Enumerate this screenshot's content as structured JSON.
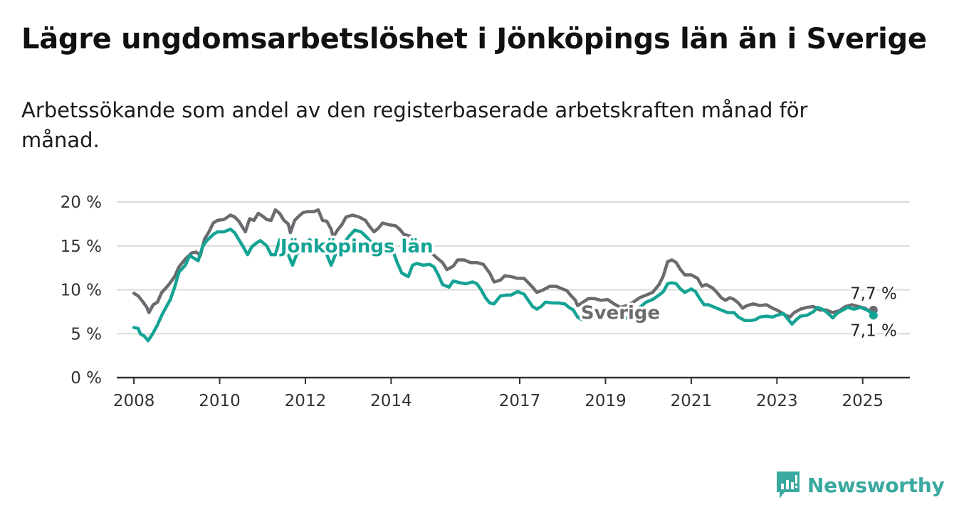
{
  "title": "Lägre ungdomsarbetslöshet i Jönköpings län än i Sverige",
  "subtitle": "Arbetssökande som andel av den registerbaserade arbetskraften månad för månad.",
  "brand": "Newsworthy",
  "chart_data": {
    "type": "line",
    "ylim": [
      0,
      20
    ],
    "xlim": [
      2007.6,
      2026.1
    ],
    "yticks": [
      0,
      5,
      10,
      15,
      20
    ],
    "ytick_labels": [
      "0 %",
      "5 %",
      "10 %",
      "15 %",
      "20 %"
    ],
    "xticks": [
      2008,
      2010,
      2012,
      2014,
      2017,
      2019,
      2021,
      2023,
      2025
    ],
    "xtick_labels": [
      "2008",
      "2010",
      "2012",
      "2014",
      "2017",
      "2019",
      "2021",
      "2023",
      "2025"
    ],
    "grid": true,
    "series": [
      {
        "name": "Sverige",
        "color": "#6b6a6e",
        "end_label": "7,7 %",
        "points": [
          [
            2008.0,
            9.6
          ],
          [
            2008.1,
            9.3
          ],
          [
            2008.2,
            8.7
          ],
          [
            2008.3,
            8.0
          ],
          [
            2008.35,
            7.4
          ],
          [
            2008.45,
            8.3
          ],
          [
            2008.55,
            8.6
          ],
          [
            2008.65,
            9.7
          ],
          [
            2008.8,
            10.5
          ],
          [
            2008.95,
            11.5
          ],
          [
            2009.05,
            12.6
          ],
          [
            2009.2,
            13.5
          ],
          [
            2009.35,
            14.2
          ],
          [
            2009.45,
            14.3
          ],
          [
            2009.55,
            13.9
          ],
          [
            2009.65,
            15.8
          ],
          [
            2009.75,
            16.6
          ],
          [
            2009.85,
            17.6
          ],
          [
            2009.95,
            17.9
          ],
          [
            2010.1,
            18.0
          ],
          [
            2010.25,
            18.5
          ],
          [
            2010.35,
            18.3
          ],
          [
            2010.45,
            17.8
          ],
          [
            2010.55,
            17.0
          ],
          [
            2010.6,
            16.6
          ],
          [
            2010.7,
            18.1
          ],
          [
            2010.8,
            17.9
          ],
          [
            2010.9,
            18.7
          ],
          [
            2011.0,
            18.4
          ],
          [
            2011.1,
            18.0
          ],
          [
            2011.2,
            17.9
          ],
          [
            2011.3,
            19.1
          ],
          [
            2011.4,
            18.7
          ],
          [
            2011.5,
            17.9
          ],
          [
            2011.6,
            17.5
          ],
          [
            2011.65,
            16.5
          ],
          [
            2011.75,
            17.9
          ],
          [
            2011.85,
            18.4
          ],
          [
            2011.95,
            18.8
          ],
          [
            2012.05,
            18.9
          ],
          [
            2012.2,
            18.9
          ],
          [
            2012.3,
            19.1
          ],
          [
            2012.4,
            17.9
          ],
          [
            2012.5,
            17.8
          ],
          [
            2012.6,
            16.9
          ],
          [
            2012.65,
            16.0
          ],
          [
            2012.75,
            16.8
          ],
          [
            2012.85,
            17.4
          ],
          [
            2012.95,
            18.3
          ],
          [
            2013.1,
            18.5
          ],
          [
            2013.25,
            18.3
          ],
          [
            2013.4,
            17.9
          ],
          [
            2013.5,
            17.2
          ],
          [
            2013.6,
            16.6
          ],
          [
            2013.7,
            17.0
          ],
          [
            2013.8,
            17.6
          ],
          [
            2013.95,
            17.4
          ],
          [
            2014.1,
            17.3
          ],
          [
            2014.2,
            16.9
          ],
          [
            2014.3,
            16.3
          ],
          [
            2014.45,
            16.1
          ],
          [
            2014.6,
            15.6
          ],
          [
            2014.75,
            15.1
          ],
          [
            2014.9,
            14.4
          ],
          [
            2015.05,
            13.7
          ],
          [
            2015.2,
            13.1
          ],
          [
            2015.3,
            12.3
          ],
          [
            2015.45,
            12.7
          ],
          [
            2015.55,
            13.4
          ],
          [
            2015.7,
            13.4
          ],
          [
            2015.85,
            13.1
          ],
          [
            2016.0,
            13.1
          ],
          [
            2016.15,
            12.9
          ],
          [
            2016.3,
            11.9
          ],
          [
            2016.4,
            10.9
          ],
          [
            2016.55,
            11.1
          ],
          [
            2016.65,
            11.6
          ],
          [
            2016.8,
            11.5
          ],
          [
            2016.95,
            11.3
          ],
          [
            2017.1,
            11.3
          ],
          [
            2017.2,
            10.8
          ],
          [
            2017.3,
            10.3
          ],
          [
            2017.4,
            9.7
          ],
          [
            2017.55,
            10.0
          ],
          [
            2017.7,
            10.4
          ],
          [
            2017.85,
            10.4
          ],
          [
            2018.0,
            10.1
          ],
          [
            2018.1,
            9.9
          ],
          [
            2018.2,
            9.3
          ],
          [
            2018.3,
            8.8
          ],
          [
            2018.35,
            8.2
          ],
          [
            2018.45,
            8.5
          ],
          [
            2018.6,
            9.0
          ],
          [
            2018.75,
            9.0
          ],
          [
            2018.9,
            8.8
          ],
          [
            2019.05,
            8.9
          ],
          [
            2019.2,
            8.4
          ],
          [
            2019.35,
            8.0
          ],
          [
            2019.5,
            8.2
          ],
          [
            2019.65,
            8.6
          ],
          [
            2019.8,
            9.1
          ],
          [
            2019.95,
            9.4
          ],
          [
            2020.1,
            9.7
          ],
          [
            2020.25,
            10.6
          ],
          [
            2020.35,
            11.6
          ],
          [
            2020.45,
            13.2
          ],
          [
            2020.55,
            13.4
          ],
          [
            2020.65,
            13.1
          ],
          [
            2020.75,
            12.3
          ],
          [
            2020.85,
            11.7
          ],
          [
            2021.0,
            11.7
          ],
          [
            2021.15,
            11.3
          ],
          [
            2021.25,
            10.4
          ],
          [
            2021.35,
            10.6
          ],
          [
            2021.5,
            10.2
          ],
          [
            2021.6,
            9.7
          ],
          [
            2021.7,
            9.1
          ],
          [
            2021.8,
            8.8
          ],
          [
            2021.9,
            9.1
          ],
          [
            2022.0,
            8.9
          ],
          [
            2022.1,
            8.5
          ],
          [
            2022.2,
            7.9
          ],
          [
            2022.3,
            8.2
          ],
          [
            2022.45,
            8.4
          ],
          [
            2022.6,
            8.2
          ],
          [
            2022.75,
            8.3
          ],
          [
            2022.9,
            7.9
          ],
          [
            2023.0,
            7.7
          ],
          [
            2023.1,
            7.4
          ],
          [
            2023.2,
            7.1
          ],
          [
            2023.3,
            6.9
          ],
          [
            2023.4,
            7.4
          ],
          [
            2023.55,
            7.8
          ],
          [
            2023.7,
            8.0
          ],
          [
            2023.85,
            8.1
          ],
          [
            2024.0,
            7.7
          ],
          [
            2024.15,
            7.7
          ],
          [
            2024.3,
            7.4
          ],
          [
            2024.45,
            7.6
          ],
          [
            2024.6,
            8.1
          ],
          [
            2024.75,
            8.3
          ],
          [
            2024.9,
            8.1
          ],
          [
            2025.05,
            7.9
          ],
          [
            2025.15,
            7.6
          ],
          [
            2025.25,
            7.7
          ]
        ]
      },
      {
        "name": "Jönköpings län",
        "color": "#14a394",
        "end_label": "7,1 %",
        "points": [
          [
            2008.0,
            5.7
          ],
          [
            2008.1,
            5.6
          ],
          [
            2008.15,
            5.0
          ],
          [
            2008.25,
            4.7
          ],
          [
            2008.33,
            4.2
          ],
          [
            2008.45,
            5.1
          ],
          [
            2008.55,
            6.0
          ],
          [
            2008.65,
            7.1
          ],
          [
            2008.75,
            8.0
          ],
          [
            2008.85,
            8.9
          ],
          [
            2008.95,
            10.3
          ],
          [
            2009.05,
            12.0
          ],
          [
            2009.2,
            12.8
          ],
          [
            2009.3,
            13.9
          ],
          [
            2009.4,
            13.6
          ],
          [
            2009.5,
            13.3
          ],
          [
            2009.6,
            14.9
          ],
          [
            2009.7,
            15.6
          ],
          [
            2009.85,
            16.3
          ],
          [
            2009.95,
            16.6
          ],
          [
            2010.1,
            16.6
          ],
          [
            2010.25,
            16.9
          ],
          [
            2010.35,
            16.5
          ],
          [
            2010.45,
            15.7
          ],
          [
            2010.55,
            14.9
          ],
          [
            2010.65,
            14.0
          ],
          [
            2010.75,
            14.9
          ],
          [
            2010.85,
            15.3
          ],
          [
            2010.95,
            15.6
          ],
          [
            2011.1,
            15.0
          ],
          [
            2011.2,
            14.0
          ],
          [
            2011.3,
            14.0
          ],
          [
            2011.4,
            15.7
          ],
          [
            2011.5,
            15.0
          ],
          [
            2011.6,
            14.0
          ],
          [
            2011.7,
            12.8
          ],
          [
            2011.8,
            14.1
          ],
          [
            2011.9,
            14.4
          ],
          [
            2012.0,
            15.3
          ],
          [
            2012.1,
            15.7
          ],
          [
            2012.2,
            15.2
          ],
          [
            2012.3,
            14.3
          ],
          [
            2012.4,
            14.8
          ],
          [
            2012.5,
            14.0
          ],
          [
            2012.6,
            12.8
          ],
          [
            2012.7,
            14.0
          ],
          [
            2012.85,
            15.0
          ],
          [
            2013.0,
            16.0
          ],
          [
            2013.15,
            16.8
          ],
          [
            2013.3,
            16.6
          ],
          [
            2013.45,
            15.9
          ],
          [
            2013.6,
            15.0
          ],
          [
            2013.75,
            14.5
          ],
          [
            2013.9,
            14.8
          ],
          [
            2014.05,
            14.3
          ],
          [
            2014.15,
            13.0
          ],
          [
            2014.25,
            11.9
          ],
          [
            2014.4,
            11.5
          ],
          [
            2014.5,
            12.8
          ],
          [
            2014.6,
            13.0
          ],
          [
            2014.75,
            12.8
          ],
          [
            2014.9,
            12.9
          ],
          [
            2015.0,
            12.6
          ],
          [
            2015.1,
            11.7
          ],
          [
            2015.2,
            10.6
          ],
          [
            2015.35,
            10.3
          ],
          [
            2015.45,
            11.0
          ],
          [
            2015.6,
            10.8
          ],
          [
            2015.75,
            10.7
          ],
          [
            2015.9,
            10.9
          ],
          [
            2016.0,
            10.7
          ],
          [
            2016.1,
            10.0
          ],
          [
            2016.2,
            9.1
          ],
          [
            2016.3,
            8.5
          ],
          [
            2016.4,
            8.4
          ],
          [
            2016.55,
            9.3
          ],
          [
            2016.7,
            9.4
          ],
          [
            2016.8,
            9.4
          ],
          [
            2016.95,
            9.8
          ],
          [
            2017.1,
            9.5
          ],
          [
            2017.2,
            8.8
          ],
          [
            2017.3,
            8.1
          ],
          [
            2017.4,
            7.8
          ],
          [
            2017.5,
            8.1
          ],
          [
            2017.6,
            8.6
          ],
          [
            2017.75,
            8.5
          ],
          [
            2017.9,
            8.5
          ],
          [
            2018.05,
            8.4
          ],
          [
            2018.15,
            8.0
          ],
          [
            2018.25,
            7.7
          ],
          [
            2018.35,
            6.9
          ],
          [
            2018.45,
            6.6
          ],
          [
            2018.55,
            6.8
          ],
          [
            2018.65,
            7.4
          ],
          [
            2018.8,
            7.4
          ],
          [
            2018.95,
            7.3
          ],
          [
            2019.1,
            7.3
          ],
          [
            2019.25,
            6.9
          ],
          [
            2019.35,
            6.6
          ],
          [
            2019.5,
            6.8
          ],
          [
            2019.65,
            7.5
          ],
          [
            2019.8,
            8.0
          ],
          [
            2019.95,
            8.6
          ],
          [
            2020.1,
            8.9
          ],
          [
            2020.25,
            9.4
          ],
          [
            2020.35,
            9.8
          ],
          [
            2020.45,
            10.7
          ],
          [
            2020.55,
            10.8
          ],
          [
            2020.65,
            10.7
          ],
          [
            2020.75,
            10.1
          ],
          [
            2020.85,
            9.7
          ],
          [
            2021.0,
            10.1
          ],
          [
            2021.1,
            9.8
          ],
          [
            2021.2,
            9.0
          ],
          [
            2021.3,
            8.3
          ],
          [
            2021.4,
            8.3
          ],
          [
            2021.55,
            8.0
          ],
          [
            2021.7,
            7.7
          ],
          [
            2021.85,
            7.4
          ],
          [
            2022.0,
            7.4
          ],
          [
            2022.1,
            6.9
          ],
          [
            2022.25,
            6.5
          ],
          [
            2022.4,
            6.5
          ],
          [
            2022.5,
            6.6
          ],
          [
            2022.6,
            6.9
          ],
          [
            2022.75,
            7.0
          ],
          [
            2022.9,
            6.9
          ],
          [
            2023.0,
            7.1
          ],
          [
            2023.15,
            7.3
          ],
          [
            2023.25,
            6.7
          ],
          [
            2023.35,
            6.1
          ],
          [
            2023.45,
            6.6
          ],
          [
            2023.55,
            7.0
          ],
          [
            2023.7,
            7.1
          ],
          [
            2023.85,
            7.5
          ],
          [
            2023.95,
            8.0
          ],
          [
            2024.05,
            7.8
          ],
          [
            2024.15,
            7.5
          ],
          [
            2024.3,
            6.8
          ],
          [
            2024.4,
            7.3
          ],
          [
            2024.5,
            7.6
          ],
          [
            2024.65,
            8.0
          ],
          [
            2024.8,
            7.8
          ],
          [
            2024.95,
            8.0
          ],
          [
            2025.1,
            7.7
          ],
          [
            2025.2,
            7.4
          ],
          [
            2025.25,
            7.1
          ]
        ]
      }
    ]
  }
}
